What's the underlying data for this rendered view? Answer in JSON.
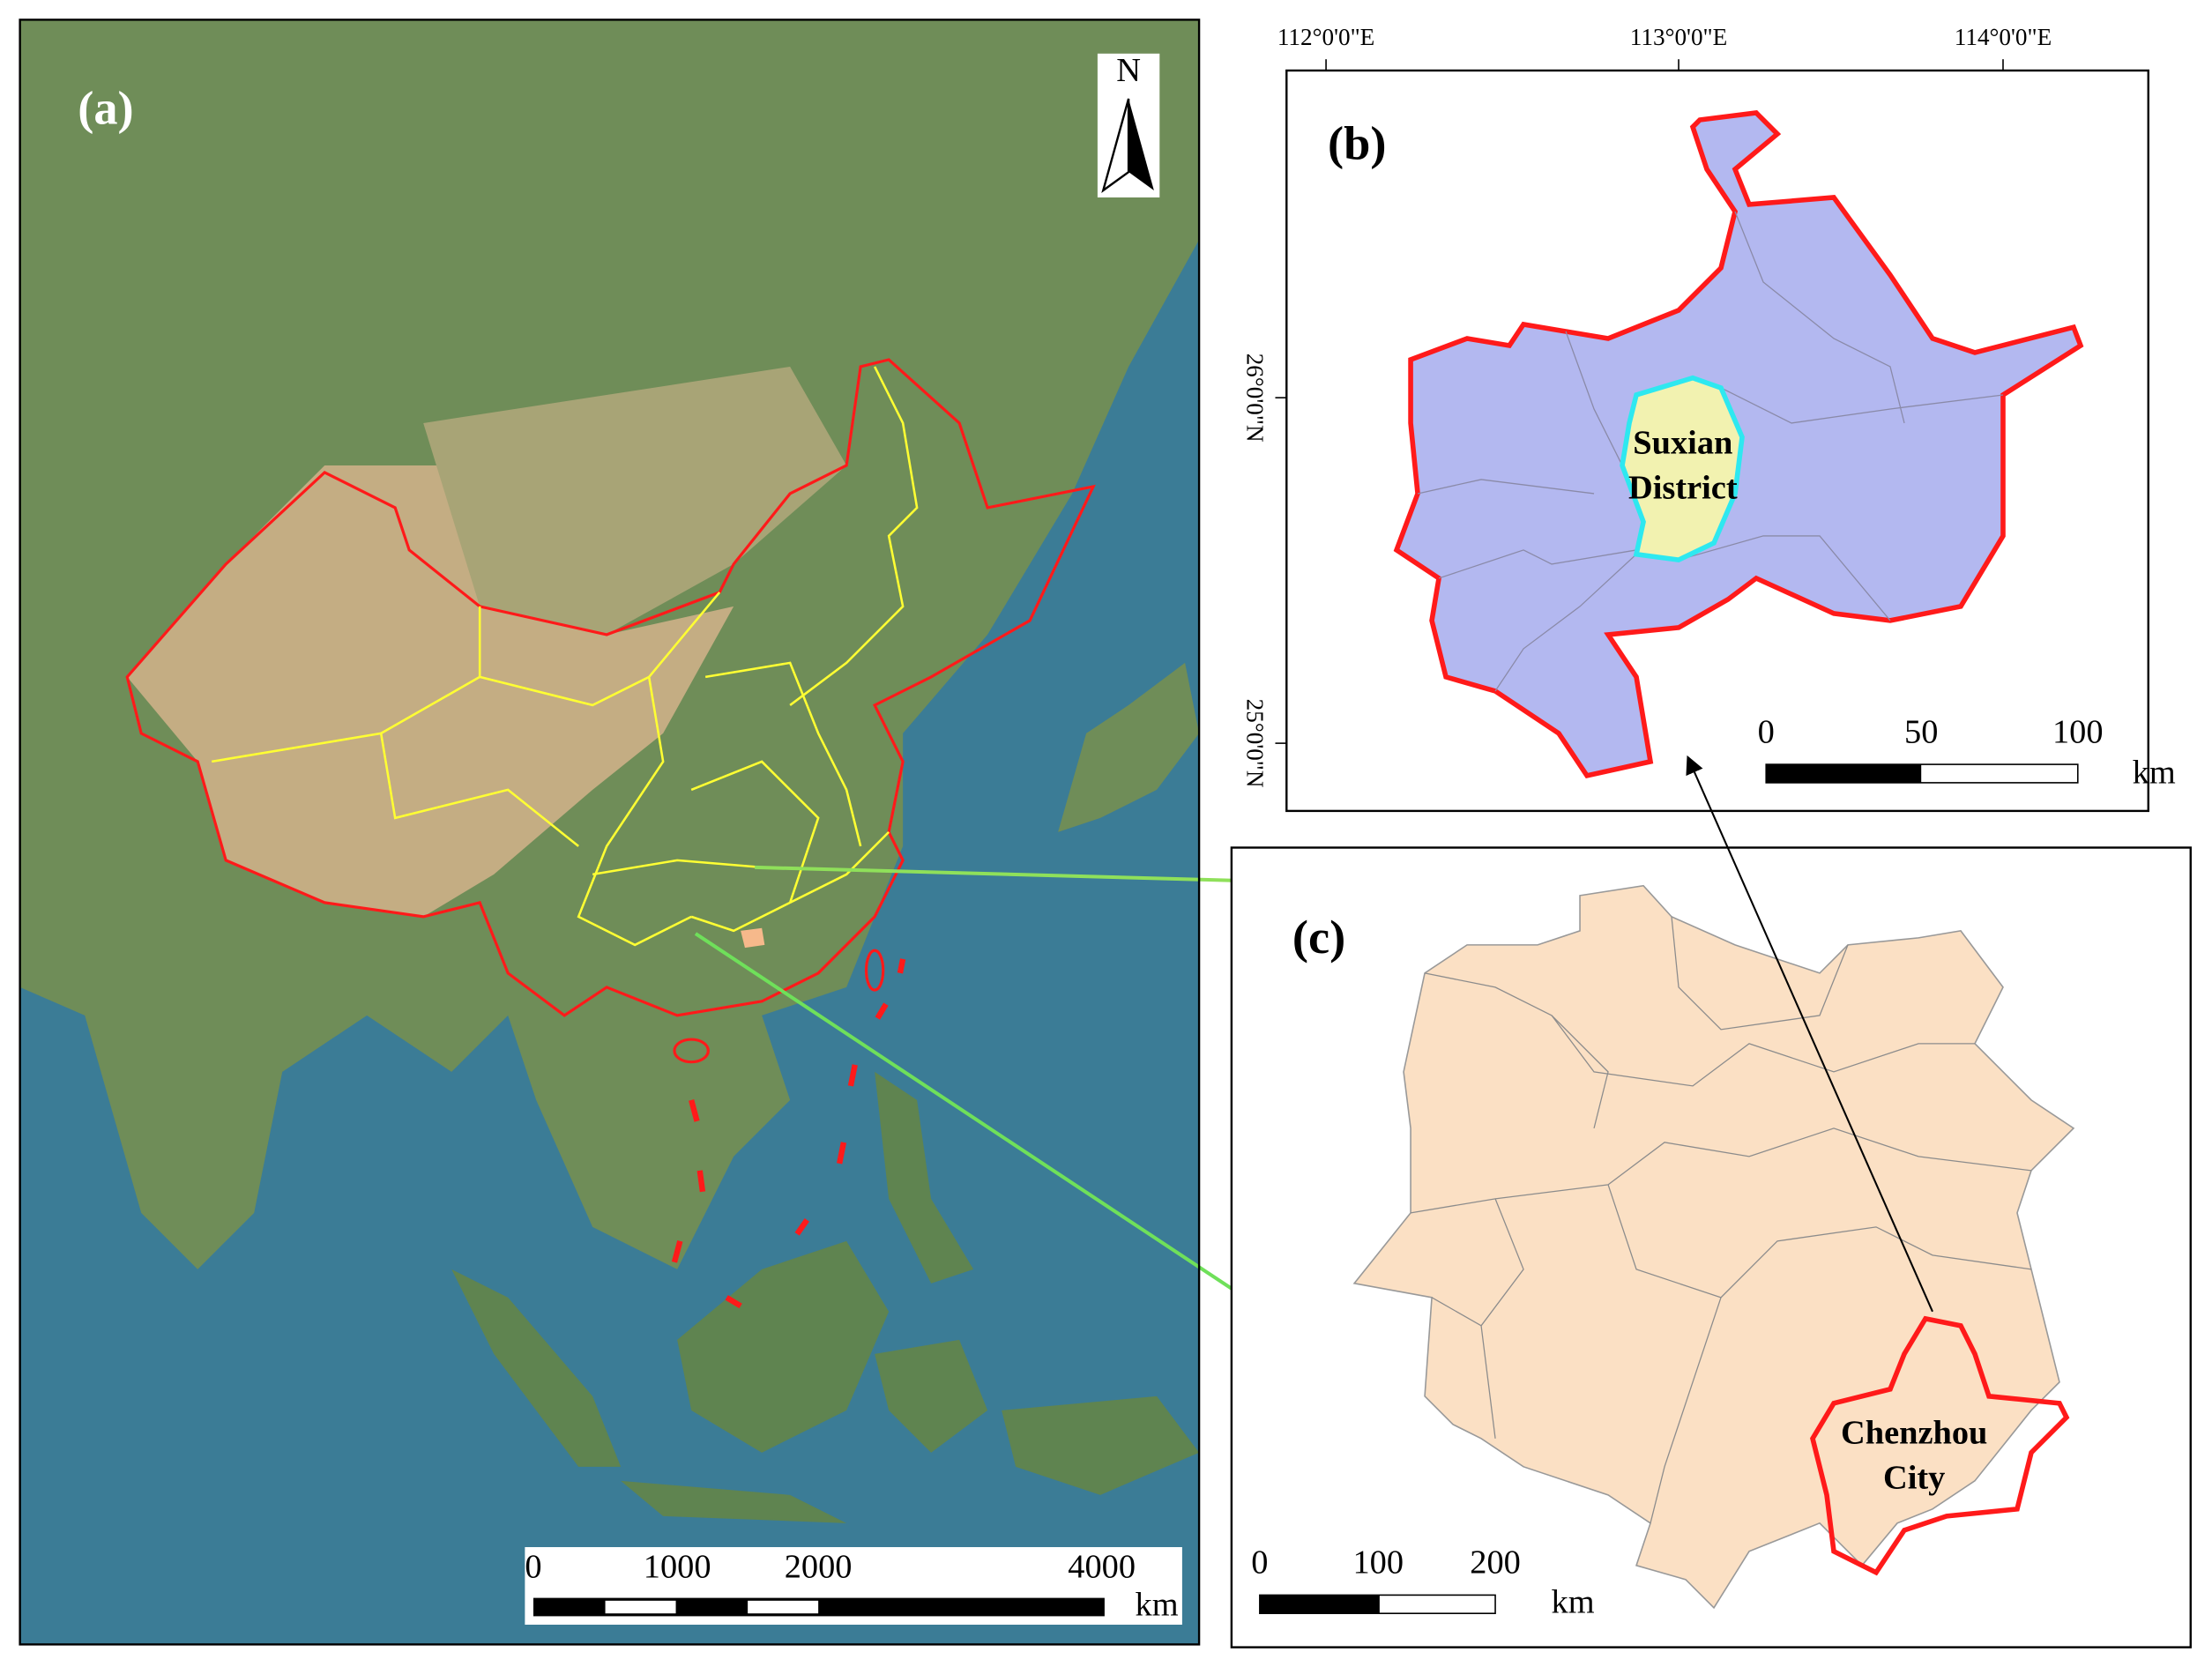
{
  "panel_a": {
    "label": "(a)",
    "north": "N",
    "scale_bar": {
      "ticks": [
        "0",
        "1000",
        "2000",
        "4000"
      ],
      "unit": "km"
    }
  },
  "panel_b": {
    "label": "(b)",
    "longitudes": [
      "112°0'0\"E",
      "113°0'0\"E",
      "114°0'0\"E"
    ],
    "latitudes": [
      "26°0'0\"N",
      "25°0'0\"N"
    ],
    "district": [
      "Suxian",
      "District"
    ],
    "scale_bar": {
      "ticks": [
        "0",
        "50",
        "100"
      ],
      "unit": "km"
    }
  },
  "panel_c": {
    "label": "(c)",
    "city": [
      "Chenzhou",
      "City"
    ],
    "scale_bar": {
      "ticks": [
        "0",
        "100",
        "200"
      ],
      "unit": "km"
    }
  }
}
